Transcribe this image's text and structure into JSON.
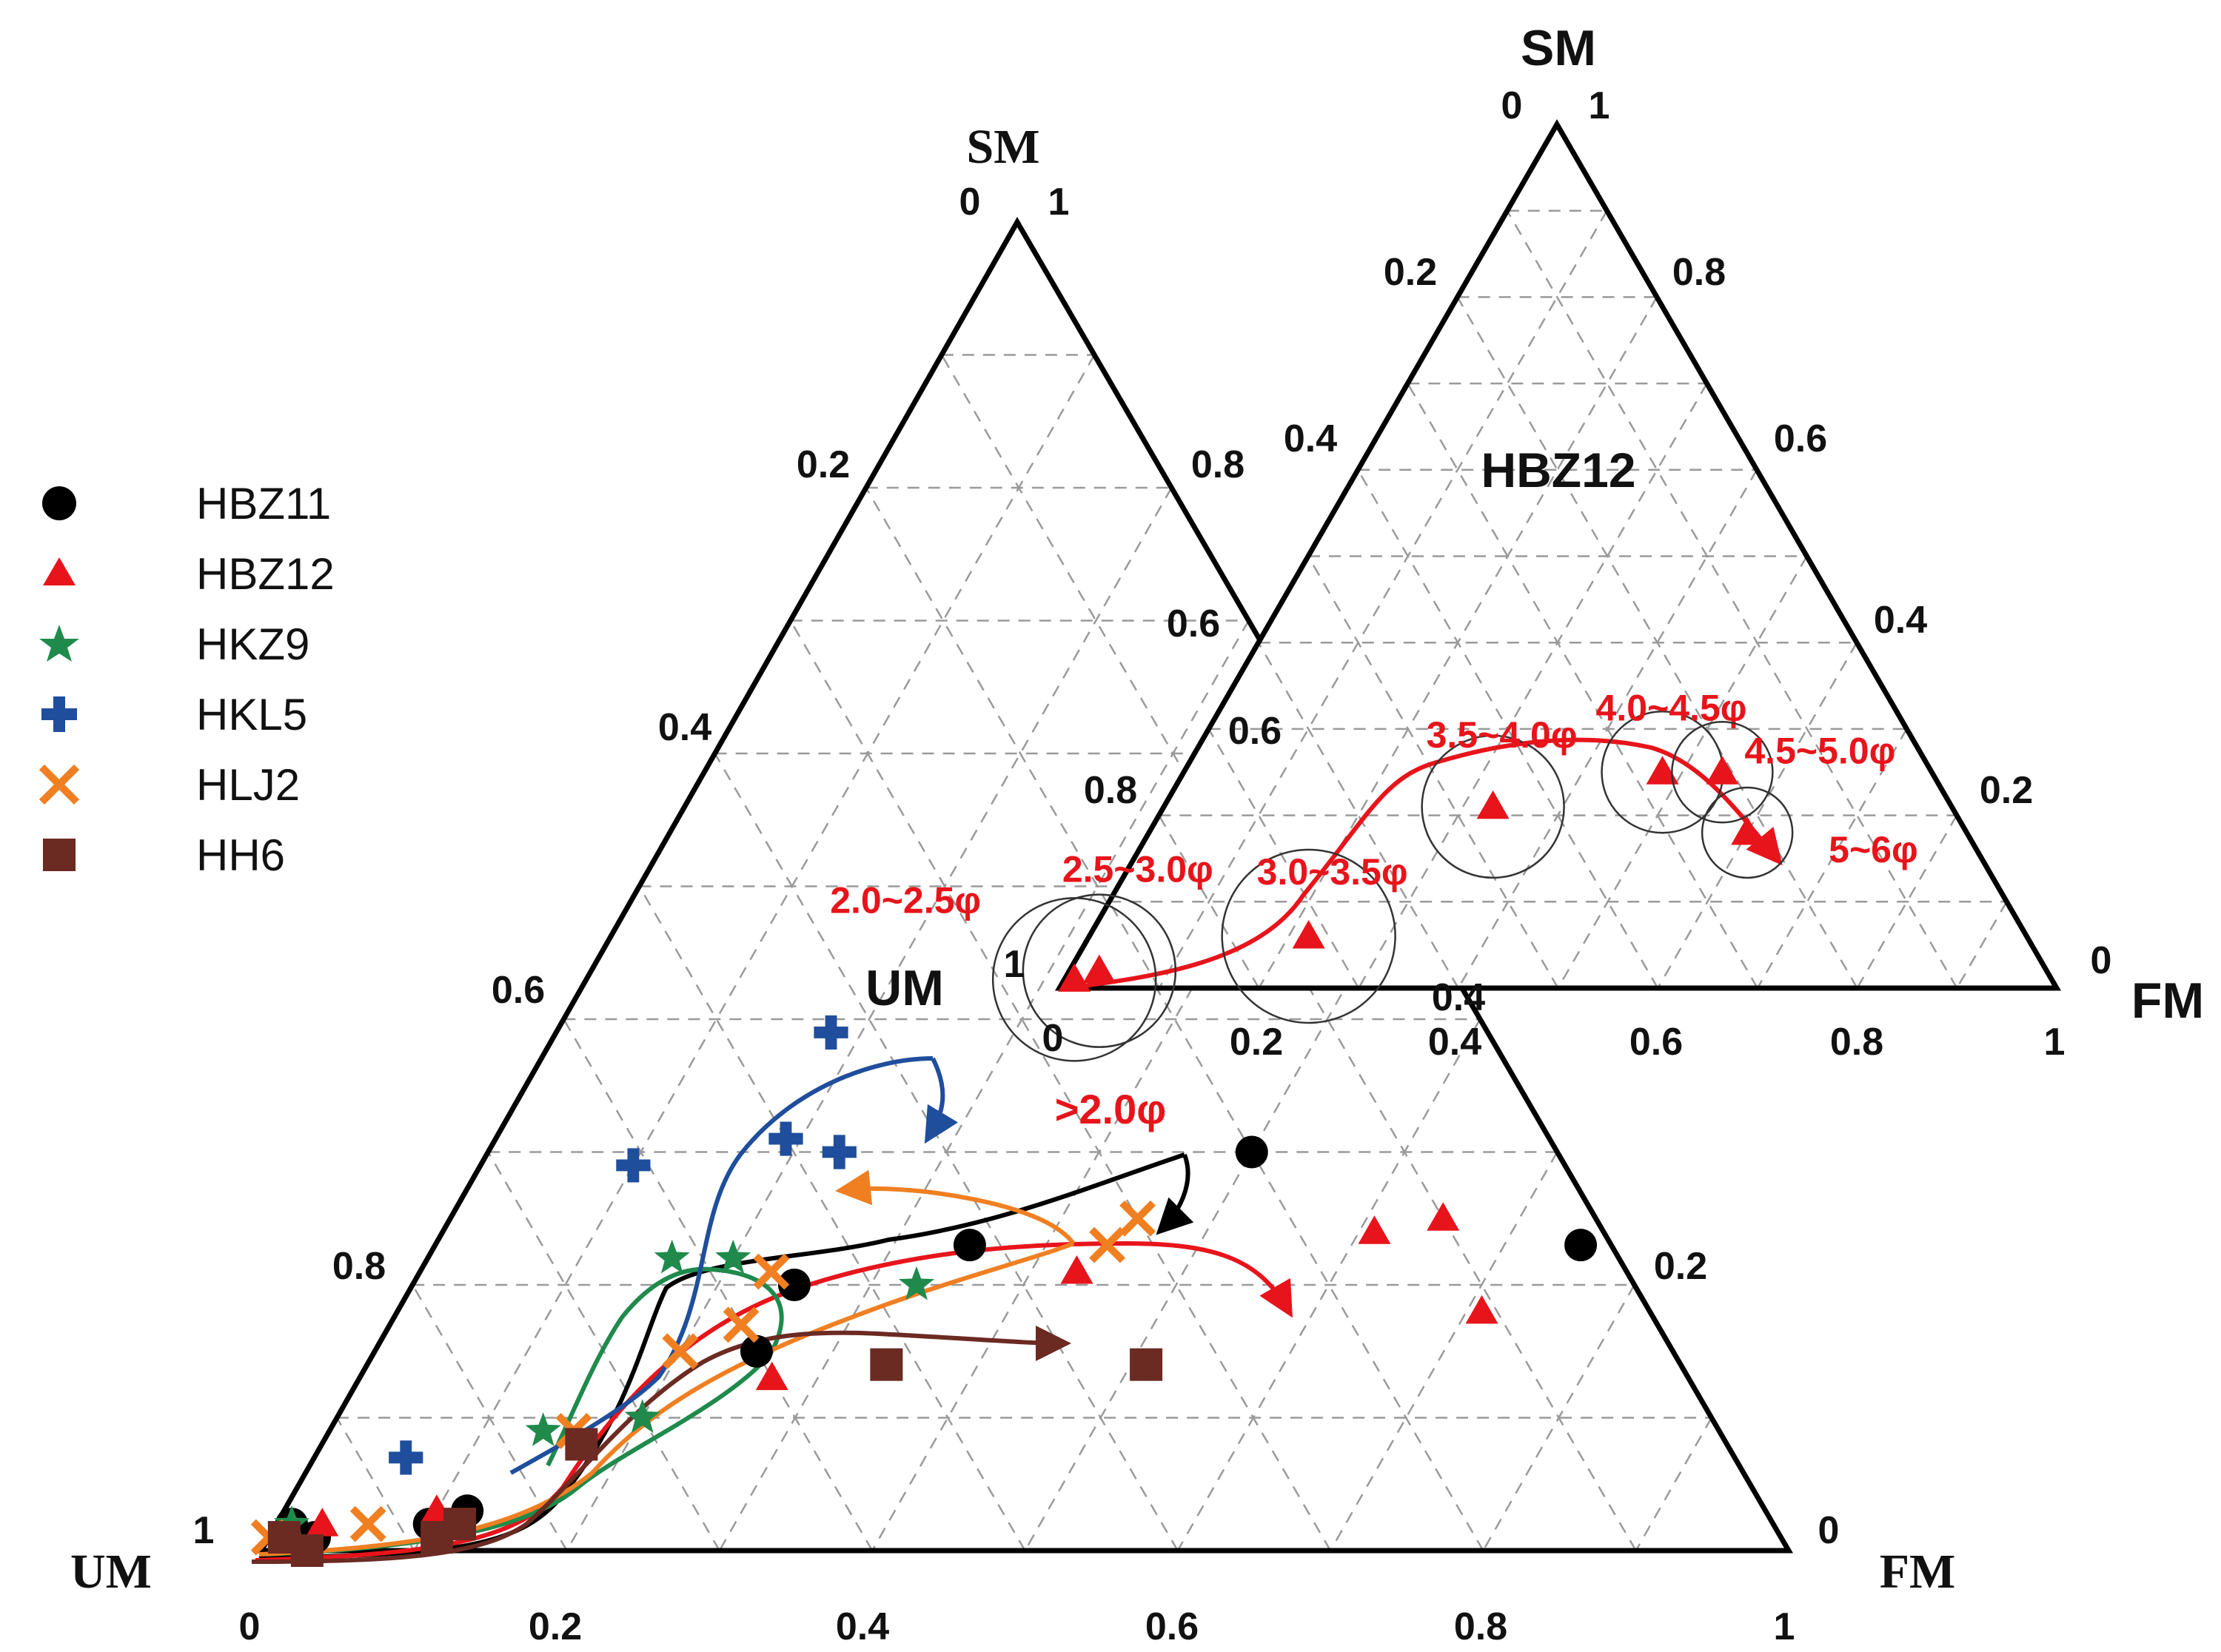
{
  "figure": {
    "main_ternary": {
      "apex_labels": {
        "top": "SM",
        "left": "UM",
        "right": "FM"
      },
      "corner_values": {
        "top_left": "0",
        "top_right": "1",
        "left": "1",
        "right": "0"
      },
      "tick_labels": [
        "0.2",
        "0.4",
        "0.6",
        "0.8"
      ],
      "bottom_tick_labels": [
        "0",
        "0.2",
        "0.4",
        "0.6",
        "0.8",
        "1"
      ]
    },
    "inset_ternary": {
      "title": "HBZ12",
      "apex_labels": {
        "top": "SM",
        "left": "UM",
        "right": "FM"
      },
      "corner_values": {
        "top_left": "0",
        "top_right": "1",
        "left_top": "1",
        "left_bottom": "0",
        "right": "0"
      },
      "tick_labels": [
        "0.2",
        "0.4",
        "0.6",
        "0.8"
      ],
      "bottom_tick_labels": [
        "0.2",
        "0.4",
        "0.6",
        "0.8",
        "1"
      ]
    },
    "annotation_main": ">2.0φ"
  },
  "legend": [
    {
      "name": "HBZ11",
      "marker": "circle",
      "color": "#000000"
    },
    {
      "name": "HBZ12",
      "marker": "triangle",
      "color": "#e8141b"
    },
    {
      "name": "HKZ9",
      "marker": "star",
      "color": "#1f8a4c"
    },
    {
      "name": "HKL5",
      "marker": "plus",
      "color": "#1f4e9c"
    },
    {
      "name": "HLJ2",
      "marker": "x",
      "color": "#f07f22"
    },
    {
      "name": "HH6",
      "marker": "square",
      "color": "#6b2a22"
    }
  ],
  "chart_data": [
    {
      "type": "scatter",
      "subtype": "ternary",
      "title": "",
      "axes": [
        "UM",
        "SM",
        "FM"
      ],
      "axis_range": [
        0,
        1
      ],
      "grid": true,
      "series": [
        {
          "name": "HBZ11",
          "color": "#000000",
          "points": [
            {
              "um": 0.97,
              "sm": 0.02,
              "fm": 0.01
            },
            {
              "um": 0.96,
              "sm": 0.01,
              "fm": 0.03
            },
            {
              "um": 0.88,
              "sm": 0.02,
              "fm": 0.1
            },
            {
              "um": 0.85,
              "sm": 0.03,
              "fm": 0.12
            },
            {
              "um": 0.6,
              "sm": 0.15,
              "fm": 0.25
            },
            {
              "um": 0.55,
              "sm": 0.2,
              "fm": 0.25
            },
            {
              "um": 0.42,
              "sm": 0.23,
              "fm": 0.35
            },
            {
              "um": 0.2,
              "sm": 0.3,
              "fm": 0.5
            },
            {
              "um": 0.02,
              "sm": 0.23,
              "fm": 0.75
            }
          ]
        },
        {
          "name": "HBZ12",
          "color": "#e8141b",
          "points": [
            {
              "um": 0.98,
              "sm": 0.01,
              "fm": 0.01
            },
            {
              "um": 0.95,
              "sm": 0.02,
              "fm": 0.03
            },
            {
              "um": 0.87,
              "sm": 0.03,
              "fm": 0.1
            },
            {
              "um": 0.6,
              "sm": 0.13,
              "fm": 0.27
            },
            {
              "um": 0.36,
              "sm": 0.21,
              "fm": 0.43
            },
            {
              "um": 0.15,
              "sm": 0.24,
              "fm": 0.61
            },
            {
              "um": 0.1,
              "sm": 0.25,
              "fm": 0.65
            },
            {
              "um": 0.11,
              "sm": 0.18,
              "fm": 0.71
            }
          ]
        },
        {
          "name": "HKZ9",
          "color": "#1f8a4c",
          "points": [
            {
              "um": 0.97,
              "sm": 0.02,
              "fm": 0.01
            },
            {
              "um": 0.77,
              "sm": 0.09,
              "fm": 0.14
            },
            {
              "um": 0.7,
              "sm": 0.1,
              "fm": 0.2
            },
            {
              "um": 0.62,
              "sm": 0.22,
              "fm": 0.16
            },
            {
              "um": 0.58,
              "sm": 0.22,
              "fm": 0.2
            },
            {
              "um": 0.47,
              "sm": 0.2,
              "fm": 0.33
            }
          ]
        },
        {
          "name": "HKL5",
          "color": "#1f4e9c",
          "points": [
            {
              "um": 0.87,
              "sm": 0.07,
              "fm": 0.06
            },
            {
              "um": 0.61,
              "sm": 0.29,
              "fm": 0.1
            },
            {
              "um": 0.5,
              "sm": 0.31,
              "fm": 0.19
            },
            {
              "um": 0.47,
              "sm": 0.3,
              "fm": 0.23
            },
            {
              "um": 0.43,
              "sm": 0.39,
              "fm": 0.18
            }
          ]
        },
        {
          "name": "HLJ2",
          "color": "#f07f22",
          "points": [
            {
              "um": 0.99,
              "sm": 0.01,
              "fm": 0.0
            },
            {
              "um": 0.92,
              "sm": 0.02,
              "fm": 0.06
            },
            {
              "um": 0.75,
              "sm": 0.09,
              "fm": 0.16
            },
            {
              "um": 0.65,
              "sm": 0.15,
              "fm": 0.2
            },
            {
              "um": 0.6,
              "sm": 0.17,
              "fm": 0.23
            },
            {
              "um": 0.56,
              "sm": 0.21,
              "fm": 0.23
            },
            {
              "um": 0.33,
              "sm": 0.23,
              "fm": 0.44
            },
            {
              "um": 0.3,
              "sm": 0.25,
              "fm": 0.45
            }
          ]
        },
        {
          "name": "HH6",
          "color": "#6b2a22",
          "points": [
            {
              "um": 0.98,
              "sm": 0.01,
              "fm": 0.01
            },
            {
              "um": 0.97,
              "sm": 0.0,
              "fm": 0.03
            },
            {
              "um": 0.88,
              "sm": 0.01,
              "fm": 0.11
            },
            {
              "um": 0.86,
              "sm": 0.02,
              "fm": 0.12
            },
            {
              "um": 0.75,
              "sm": 0.08,
              "fm": 0.17
            },
            {
              "um": 0.52,
              "sm": 0.14,
              "fm": 0.34
            },
            {
              "um": 0.35,
              "sm": 0.14,
              "fm": 0.51
            }
          ]
        }
      ],
      "annotations": [
        ">2.0φ"
      ]
    },
    {
      "type": "scatter",
      "subtype": "ternary",
      "title": "HBZ12",
      "axes": [
        "UM",
        "SM",
        "FM"
      ],
      "axis_range": [
        0,
        1
      ],
      "grid": true,
      "series": [
        {
          "name": "HBZ12",
          "color": "#e8141b",
          "points": [
            {
              "fraction": "2.0~2.5φ",
              "um": 0.98,
              "sm": 0.01,
              "fm": 0.01,
              "rel_size": 0.5
            },
            {
              "fraction": "2.5~3.0φ",
              "um": 0.95,
              "sm": 0.02,
              "fm": 0.03,
              "rel_size": 0.45
            },
            {
              "fraction": "3.0~3.5φ",
              "um": 0.72,
              "sm": 0.06,
              "fm": 0.22,
              "rel_size": 0.55
            },
            {
              "fraction": "3.5~4.0φ",
              "um": 0.46,
              "sm": 0.21,
              "fm": 0.33,
              "rel_size": 0.4
            },
            {
              "fraction": "4.0~4.5φ",
              "um": 0.27,
              "sm": 0.25,
              "fm": 0.48,
              "rel_size": 0.3
            },
            {
              "fraction": "4.5~5.0φ",
              "um": 0.21,
              "sm": 0.25,
              "fm": 0.54,
              "rel_size": 0.2
            },
            {
              "fraction": "5~6φ",
              "um": 0.22,
              "sm": 0.18,
              "fm": 0.6,
              "rel_size": 0.15
            }
          ]
        }
      ]
    }
  ]
}
